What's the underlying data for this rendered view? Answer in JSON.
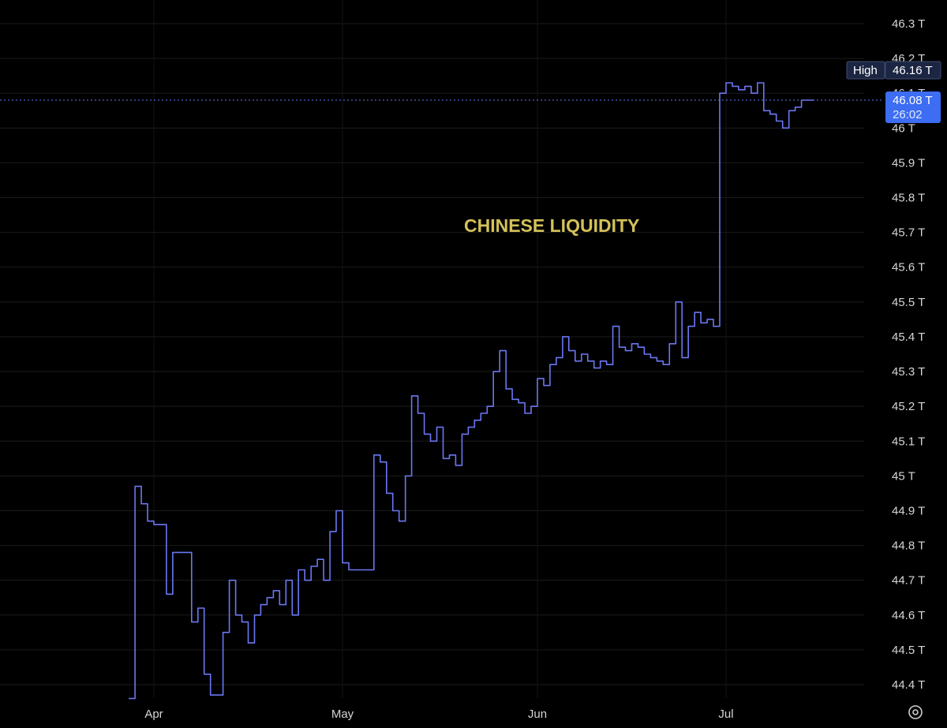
{
  "chart_data": {
    "type": "line",
    "title": "",
    "annotation": "CHINESE LIQUIDITY",
    "xlabel": "",
    "ylabel": "",
    "x_tick_labels": [
      "Apr",
      "May",
      "Jun",
      "Jul"
    ],
    "y_tick_labels": [
      "44.4 T",
      "44.5 T",
      "44.6 T",
      "44.7 T",
      "44.8 T",
      "44.9 T",
      "45 T",
      "45.1 T",
      "45.2 T",
      "45.3 T",
      "45.4 T",
      "45.5 T",
      "45.6 T",
      "45.7 T",
      "45.8 T",
      "45.9 T",
      "46 T",
      "46.1 T",
      "46.2 T",
      "46.3 T"
    ],
    "y_unit": "T",
    "ylim": [
      44.35,
      46.32
    ],
    "grid": true,
    "x_dates": [
      "03-28",
      "03-29",
      "03-30",
      "03-31",
      "04-01",
      "04-02",
      "04-03",
      "04-04",
      "04-05",
      "04-06",
      "04-07",
      "04-08",
      "04-09",
      "04-10",
      "04-11",
      "04-12",
      "04-13",
      "04-14",
      "04-15",
      "04-16",
      "04-17",
      "04-18",
      "04-19",
      "04-20",
      "04-21",
      "04-22",
      "04-23",
      "04-24",
      "04-25",
      "04-26",
      "04-27",
      "04-28",
      "04-29",
      "04-30",
      "05-01",
      "05-02",
      "05-03",
      "05-04",
      "05-05",
      "05-06",
      "05-07",
      "05-08",
      "05-09",
      "05-10",
      "05-11",
      "05-12",
      "05-13",
      "05-14",
      "05-15",
      "05-16",
      "05-17",
      "05-18",
      "05-19",
      "05-20",
      "05-21",
      "05-22",
      "05-23",
      "05-24",
      "05-25",
      "05-26",
      "05-27",
      "05-28",
      "05-29",
      "05-30",
      "05-31",
      "06-01",
      "06-02",
      "06-03",
      "06-04",
      "06-05",
      "06-06",
      "06-07",
      "06-08",
      "06-09",
      "06-10",
      "06-11",
      "06-12",
      "06-13",
      "06-14",
      "06-15",
      "06-16",
      "06-17",
      "06-18",
      "06-19",
      "06-20",
      "06-21",
      "06-22",
      "06-23",
      "06-24",
      "06-25",
      "06-26",
      "06-27",
      "06-28",
      "06-29",
      "06-30",
      "07-01",
      "07-02",
      "07-03",
      "07-04",
      "07-05",
      "07-06",
      "07-07",
      "07-08",
      "07-09",
      "07-10",
      "07-11",
      "07-12",
      "07-13",
      "07-14",
      "07-15"
    ],
    "series": [
      {
        "color": "#6b77f2",
        "values": [
          44.36,
          44.97,
          44.92,
          44.87,
          44.86,
          44.86,
          44.66,
          44.78,
          44.78,
          44.78,
          44.58,
          44.62,
          44.43,
          44.37,
          44.37,
          44.55,
          44.7,
          44.6,
          44.58,
          44.52,
          44.6,
          44.63,
          44.65,
          44.67,
          44.63,
          44.7,
          44.6,
          44.73,
          44.7,
          44.74,
          44.76,
          44.7,
          44.84,
          44.9,
          44.75,
          44.73,
          44.73,
          44.73,
          44.73,
          45.06,
          45.04,
          44.95,
          44.9,
          44.87,
          45.0,
          45.23,
          45.18,
          45.12,
          45.1,
          45.14,
          45.05,
          45.06,
          45.03,
          45.12,
          45.14,
          45.16,
          45.18,
          45.2,
          45.3,
          45.36,
          45.25,
          45.22,
          45.21,
          45.18,
          45.2,
          45.28,
          45.26,
          45.32,
          45.34,
          45.4,
          45.36,
          45.33,
          45.35,
          45.33,
          45.31,
          45.33,
          45.32,
          45.43,
          45.37,
          45.36,
          45.38,
          45.37,
          45.35,
          45.34,
          45.33,
          45.32,
          45.38,
          45.5,
          45.34,
          45.43,
          45.47,
          45.44,
          45.45,
          45.43,
          46.1,
          46.13,
          46.12,
          46.11,
          46.12,
          46.1,
          46.13,
          46.05,
          46.04,
          46.02,
          46.0,
          46.05,
          46.06,
          46.08,
          46.08,
          46.08
        ]
      }
    ],
    "badges": {
      "high_label": "High",
      "high_value": "46.16 T",
      "high_level": 46.16,
      "last_value": "46.08 T",
      "last_level": 46.08,
      "countdown": "26:02"
    }
  },
  "icons": {
    "settings": "settings-gear-icon"
  }
}
